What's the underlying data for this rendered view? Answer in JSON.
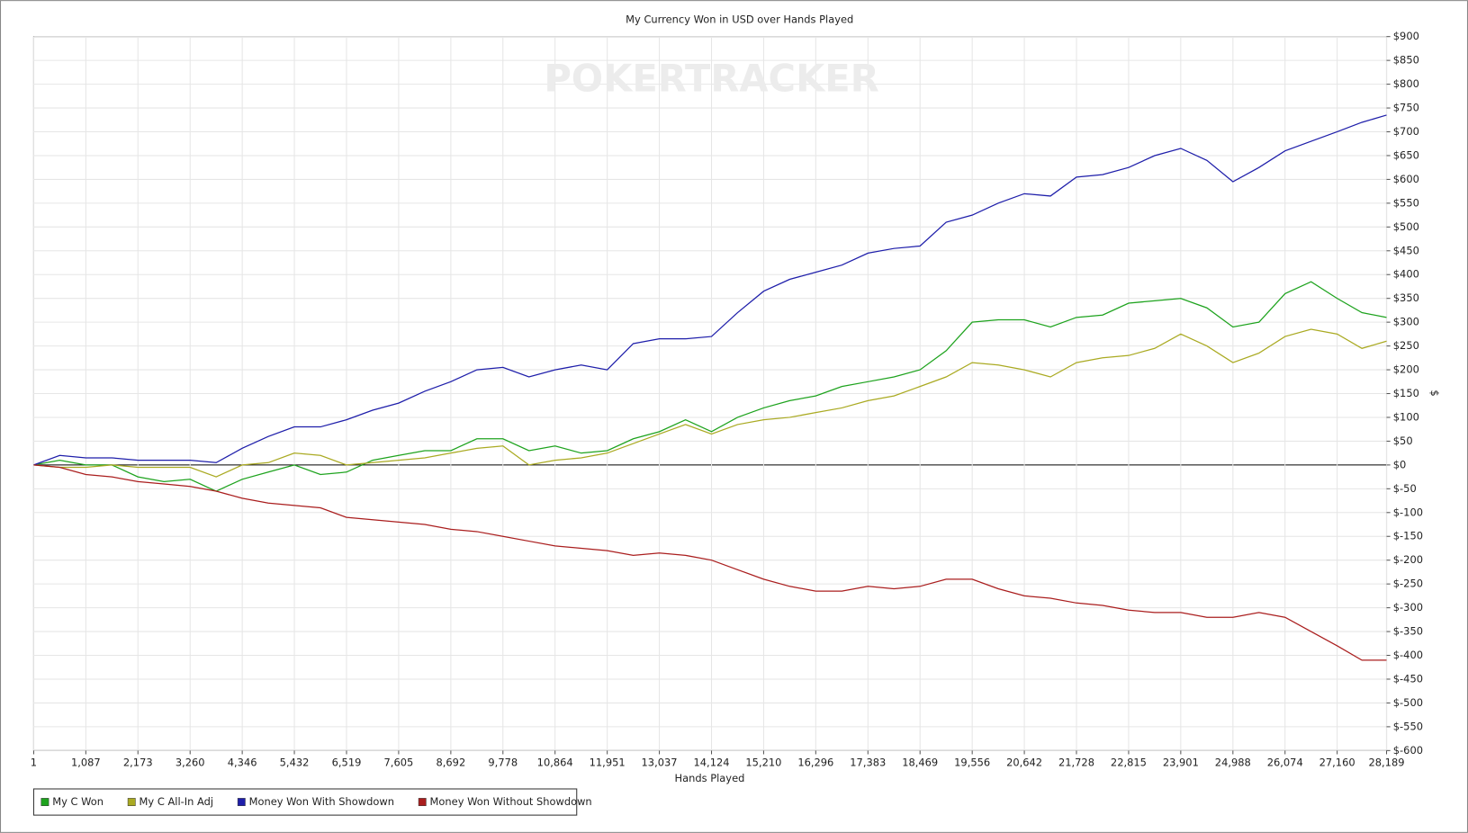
{
  "chart_data": {
    "type": "line",
    "title": "My Currency Won in USD over Hands Played",
    "watermark": "POKERTRACKER",
    "x_label": "Hands Played",
    "y_label": "$",
    "legend": "bottom-left",
    "grid": true,
    "x": [
      1,
      544,
      1087,
      1630,
      2173,
      2717,
      3260,
      3803,
      4346,
      4889,
      5432,
      5976,
      6519,
      7062,
      7605,
      8149,
      8692,
      9235,
      9778,
      10321,
      10864,
      11408,
      11951,
      12494,
      13037,
      13581,
      14124,
      14667,
      15210,
      15753,
      16296,
      16840,
      17383,
      17926,
      18469,
      19013,
      19556,
      20099,
      20642,
      21185,
      21728,
      22272,
      22815,
      23358,
      23901,
      24445,
      24988,
      25531,
      26074,
      26617,
      27160,
      27675,
      28189
    ],
    "xlim": [
      1,
      28189
    ],
    "xticks": [
      1,
      {
        "value": 1087,
        "label": "1,087"
      },
      {
        "value": 2173,
        "label": "2,173"
      },
      {
        "value": 3260,
        "label": "3,260"
      },
      {
        "value": 4346,
        "label": "4,346"
      },
      {
        "value": 5432,
        "label": "5,432"
      },
      {
        "value": 6519,
        "label": "6,519"
      },
      {
        "value": 7605,
        "label": "7,605"
      },
      {
        "value": 8692,
        "label": "8,692"
      },
      {
        "value": 9778,
        "label": "9,778"
      },
      {
        "value": 10864,
        "label": "10,864"
      },
      {
        "value": 11951,
        "label": "11,951"
      },
      {
        "value": 13037,
        "label": "13,037"
      },
      {
        "value": 14124,
        "label": "14,124"
      },
      {
        "value": 15210,
        "label": "15,210"
      },
      {
        "value": 16296,
        "label": "16,296"
      },
      {
        "value": 17383,
        "label": "17,383"
      },
      {
        "value": 18469,
        "label": "18,469"
      },
      {
        "value": 19556,
        "label": "19,556"
      },
      {
        "value": 20642,
        "label": "20,642"
      },
      {
        "value": 21728,
        "label": "21,728"
      },
      {
        "value": 22815,
        "label": "22,815"
      },
      {
        "value": 23901,
        "label": "23,901"
      },
      {
        "value": 24988,
        "label": "24,988"
      },
      {
        "value": 26074,
        "label": "26,074"
      },
      {
        "value": 27160,
        "label": "27,160"
      },
      {
        "value": 28189,
        "label": "28,189"
      }
    ],
    "ylim": [
      -600,
      900
    ],
    "yticks": [
      {
        "value": -600,
        "label": "$-600"
      },
      {
        "value": -550,
        "label": "$-550"
      },
      {
        "value": -500,
        "label": "$-500"
      },
      {
        "value": -450,
        "label": "$-450"
      },
      {
        "value": -400,
        "label": "$-400"
      },
      {
        "value": -350,
        "label": "$-350"
      },
      {
        "value": -300,
        "label": "$-300"
      },
      {
        "value": -250,
        "label": "$-250"
      },
      {
        "value": -200,
        "label": "$-200"
      },
      {
        "value": -150,
        "label": "$-150"
      },
      {
        "value": -100,
        "label": "$-100"
      },
      {
        "value": -50,
        "label": "$-50"
      },
      {
        "value": 0,
        "label": "$0"
      },
      {
        "value": 50,
        "label": "$50"
      },
      {
        "value": 100,
        "label": "$100"
      },
      {
        "value": 150,
        "label": "$150"
      },
      {
        "value": 200,
        "label": "$200"
      },
      {
        "value": 250,
        "label": "$250"
      },
      {
        "value": 300,
        "label": "$300"
      },
      {
        "value": 350,
        "label": "$350"
      },
      {
        "value": 400,
        "label": "$400"
      },
      {
        "value": 450,
        "label": "$450"
      },
      {
        "value": 500,
        "label": "$500"
      },
      {
        "value": 550,
        "label": "$550"
      },
      {
        "value": 600,
        "label": "$600"
      },
      {
        "value": 650,
        "label": "$650"
      },
      {
        "value": 700,
        "label": "$700"
      },
      {
        "value": 750,
        "label": "$750"
      },
      {
        "value": 800,
        "label": "$800"
      },
      {
        "value": 850,
        "label": "$850"
      },
      {
        "value": 900,
        "label": "$900"
      }
    ],
    "series": [
      {
        "name": "My C Won",
        "color": "#1ea31e",
        "values": [
          0,
          10,
          0,
          0,
          -25,
          -35,
          -30,
          -55,
          -30,
          -15,
          0,
          -20,
          -15,
          10,
          20,
          30,
          30,
          55,
          55,
          30,
          40,
          25,
          30,
          55,
          70,
          95,
          70,
          100,
          120,
          135,
          145,
          165,
          175,
          185,
          200,
          240,
          300,
          305,
          305,
          290,
          310,
          315,
          340,
          345,
          350,
          330,
          290,
          300,
          360,
          385,
          350,
          320,
          310
        ]
      },
      {
        "name": "My C All-In Adj",
        "color": "#aaaa22",
        "values": [
          0,
          -5,
          -5,
          0,
          -5,
          -5,
          -5,
          -25,
          0,
          5,
          25,
          20,
          0,
          5,
          10,
          15,
          25,
          35,
          40,
          0,
          10,
          15,
          25,
          45,
          65,
          85,
          65,
          85,
          95,
          100,
          110,
          120,
          135,
          145,
          165,
          185,
          215,
          210,
          200,
          185,
          215,
          225,
          230,
          245,
          275,
          250,
          215,
          235,
          270,
          285,
          275,
          245,
          260
        ]
      },
      {
        "name": "Money Won With Showdown",
        "color": "#1e1eaa",
        "values": [
          0,
          20,
          15,
          15,
          10,
          10,
          10,
          5,
          35,
          60,
          80,
          80,
          95,
          115,
          130,
          155,
          175,
          200,
          205,
          185,
          200,
          210,
          200,
          255,
          265,
          265,
          270,
          320,
          365,
          390,
          405,
          420,
          445,
          455,
          460,
          510,
          525,
          550,
          570,
          565,
          605,
          610,
          625,
          650,
          665,
          640,
          595,
          625,
          660,
          680,
          700,
          720,
          735
        ]
      },
      {
        "name": "Money Won Without Showdown",
        "color": "#aa1e1e",
        "values": [
          0,
          -5,
          -20,
          -25,
          -35,
          -40,
          -45,
          -55,
          -70,
          -80,
          -85,
          -90,
          -110,
          -115,
          -120,
          -125,
          -135,
          -140,
          -150,
          -160,
          -170,
          -175,
          -180,
          -190,
          -185,
          -190,
          -200,
          -220,
          -240,
          -255,
          -265,
          -265,
          -255,
          -260,
          -255,
          -240,
          -240,
          -260,
          -275,
          -280,
          -290,
          -295,
          -305,
          -310,
          -310,
          -320,
          -320,
          -310,
          -320,
          -350,
          -380,
          -410,
          -410
        ]
      }
    ]
  }
}
